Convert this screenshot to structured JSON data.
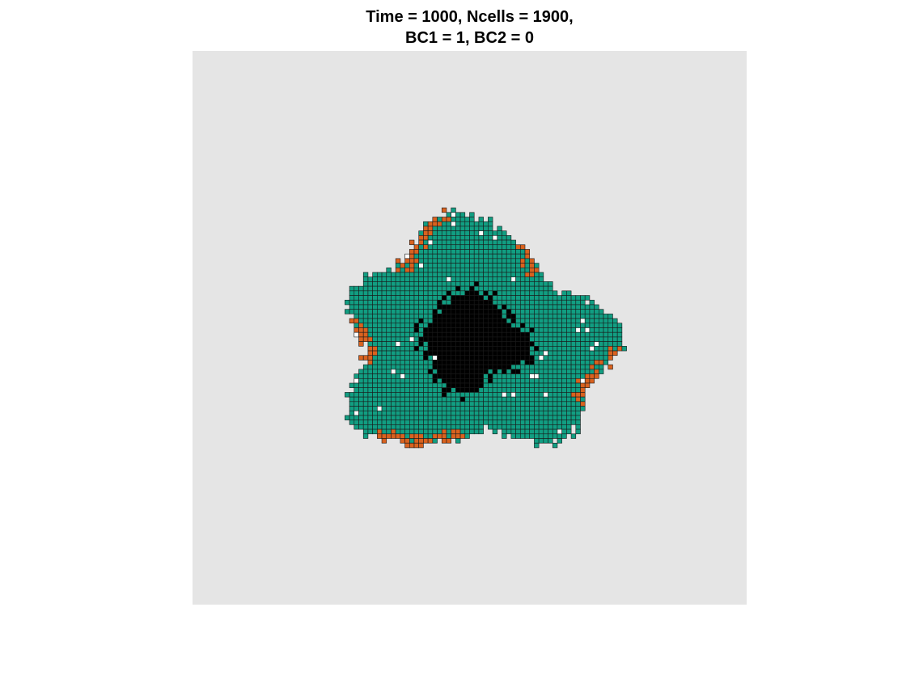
{
  "figure": {
    "title_line1": "Time = 1000, Ncells = 1900,",
    "title_line2": "BC1 = 1, BC2 = 0"
  },
  "colors": {
    "axes_background": "#e5e5e5",
    "healthy_cell": "#119e82",
    "resistant_cell": "#d9621f",
    "dead_core": "#000000",
    "empty_site": "#ffffff",
    "cell_edge": "#1a1a1a"
  }
}
